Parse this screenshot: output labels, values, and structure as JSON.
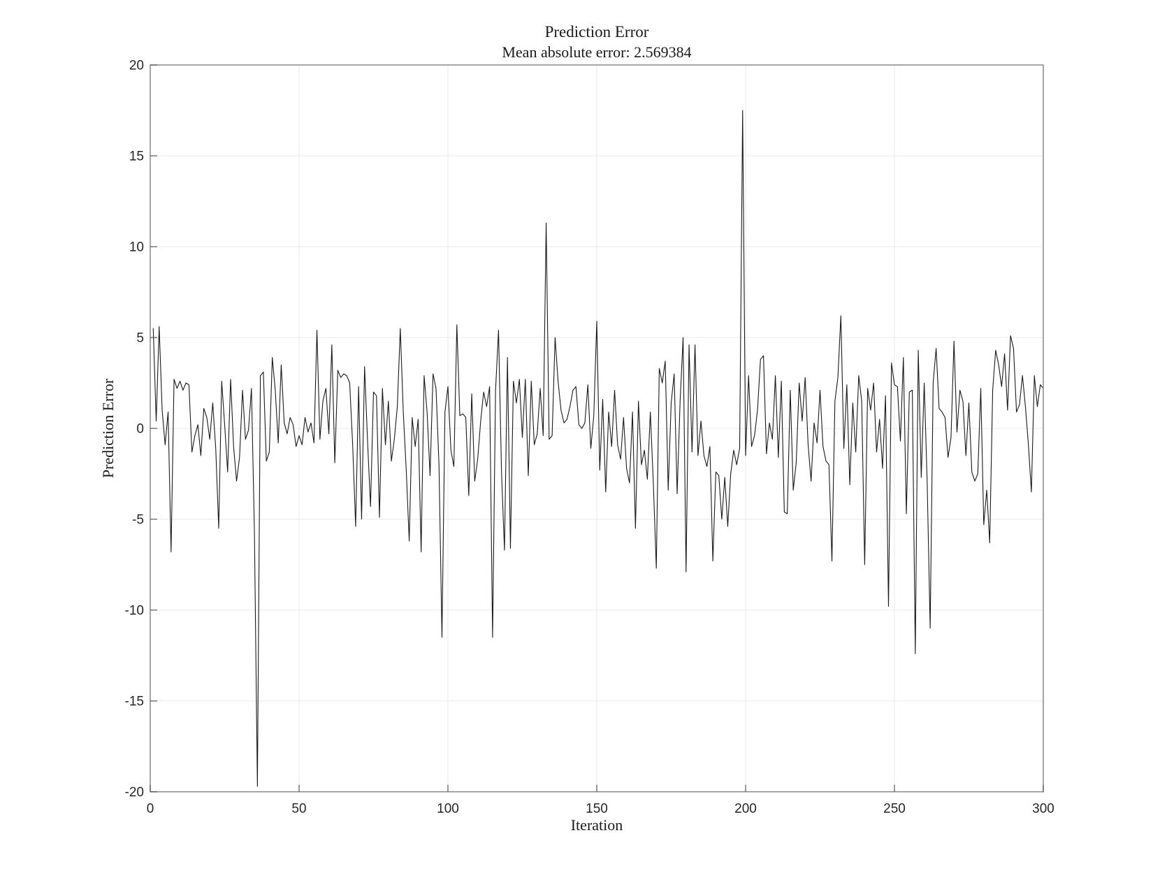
{
  "figure": {
    "title": "Prediction Error",
    "subtitle": "Mean absolute error: 2.569384"
  },
  "chart_data": {
    "type": "line",
    "title": "Prediction Error",
    "subtitle": "Mean absolute error: 2.569384",
    "xlabel": "Iteration",
    "ylabel": "Prediction Error",
    "xlim": [
      0,
      300
    ],
    "ylim": [
      -20,
      20
    ],
    "xticks": [
      0,
      50,
      100,
      150,
      200,
      250,
      300
    ],
    "yticks": [
      -20,
      -15,
      -10,
      -5,
      0,
      5,
      10,
      15,
      20
    ],
    "grid": true,
    "legend_position": "none",
    "line_color": "#1a1a1a",
    "grid_color": "#e8e8e8",
    "axis_color": "#909090",
    "tick_color": "#555555",
    "label_color": "#262626",
    "x_start": 1,
    "x_step": 1,
    "series": [
      {
        "name": "prediction-error",
        "values": [
          5.5,
          0.4,
          5.6,
          1.0,
          -0.9,
          0.9,
          -6.8,
          2.7,
          2.2,
          2.6,
          2.1,
          2.5,
          2.4,
          -1.3,
          -0.4,
          0.2,
          -1.5,
          1.1,
          0.6,
          -0.6,
          1.4,
          -1.1,
          -5.5,
          2.6,
          0.2,
          -2.4,
          2.7,
          -1.0,
          -2.9,
          -1.6,
          2.1,
          -0.6,
          -0.1,
          2.2,
          -5.7,
          -19.7,
          2.9,
          3.1,
          -1.8,
          -1.3,
          3.9,
          2.1,
          -0.8,
          3.5,
          0.3,
          -0.3,
          0.6,
          0.2,
          -1.0,
          -0.4,
          -0.9,
          0.6,
          -0.2,
          0.3,
          -0.8,
          5.4,
          -0.6,
          1.5,
          2.2,
          -0.3,
          4.6,
          -1.9,
          3.2,
          2.8,
          3.0,
          2.9,
          2.5,
          -0.9,
          -5.4,
          2.3,
          -5.0,
          3.4,
          -0.7,
          -4.3,
          2.0,
          1.8,
          -4.9,
          2.2,
          -0.9,
          1.5,
          -1.8,
          -0.6,
          1.2,
          5.5,
          0.9,
          -2.3,
          -6.2,
          0.6,
          -1.0,
          0.5,
          -6.8,
          2.9,
          0.9,
          -2.6,
          3.0,
          2.2,
          -2.0,
          -11.5,
          0.9,
          2.3,
          -1.2,
          -2.1,
          5.7,
          0.7,
          0.8,
          0.6,
          -3.7,
          1.9,
          -2.9,
          -1.7,
          0.4,
          2.0,
          1.2,
          2.3,
          -11.5,
          2.1,
          5.4,
          -2.4,
          -6.7,
          3.9,
          -6.6,
          2.6,
          1.4,
          2.7,
          -0.5,
          2.7,
          -2.6,
          2.6,
          -0.9,
          -0.3,
          2.2,
          -0.4,
          11.3,
          -0.6,
          -0.4,
          5.0,
          2.6,
          1.0,
          0.3,
          0.5,
          1.2,
          2.1,
          2.3,
          0.2,
          0.0,
          0.3,
          2.4,
          -1.1,
          0.7,
          5.9,
          -2.3,
          1.6,
          -3.5,
          0.9,
          -1.0,
          2.1,
          -0.9,
          -1.7,
          0.6,
          -2.2,
          -3.0,
          0.9,
          -5.5,
          1.5,
          -2.0,
          -1.2,
          -2.8,
          0.9,
          -3.0,
          -7.7,
          3.3,
          2.5,
          3.7,
          -3.4,
          1.4,
          3.0,
          -3.6,
          1.5,
          5.0,
          -7.9,
          4.6,
          -1.3,
          4.6,
          -1.5,
          0.4,
          -1.5,
          -2.1,
          -1.0,
          -7.3,
          -2.4,
          -2.6,
          -5.0,
          -2.7,
          -5.4,
          -2.5,
          -1.2,
          -2.0,
          -1.1,
          17.5,
          -1.5,
          2.9,
          -1.0,
          -0.4,
          1.0,
          3.8,
          4.0,
          -1.4,
          0.3,
          -0.6,
          2.9,
          -1.6,
          2.6,
          -4.6,
          -4.7,
          2.1,
          -3.4,
          -1.9,
          2.5,
          0.4,
          2.8,
          -0.9,
          -2.9,
          0.3,
          -0.8,
          2.1,
          -1.0,
          -1.8,
          -2.0,
          -7.3,
          1.5,
          2.8,
          6.2,
          -1.1,
          2.4,
          -3.1,
          1.4,
          -1.3,
          2.9,
          1.5,
          -7.5,
          2.2,
          1.0,
          2.5,
          -1.3,
          0.5,
          -2.2,
          1.8,
          -9.8,
          3.6,
          2.4,
          2.3,
          -0.7,
          3.9,
          -4.7,
          2.0,
          2.1,
          -12.4,
          4.3,
          -2.7,
          2.5,
          -3.0,
          -11.0,
          2.5,
          4.4,
          1.1,
          0.9,
          0.6,
          -1.6,
          -0.5,
          4.8,
          -0.2,
          2.1,
          1.5,
          -1.5,
          1.4,
          -2.4,
          -2.9,
          -2.5,
          2.2,
          -5.3,
          -3.4,
          -6.3,
          2.1,
          4.3,
          3.5,
          2.3,
          4.1,
          1.0,
          5.1,
          4.4,
          0.9,
          1.3,
          2.9,
          1.2,
          -0.9,
          -3.5,
          2.9,
          1.2,
          2.4,
          2.2
        ]
      }
    ]
  }
}
